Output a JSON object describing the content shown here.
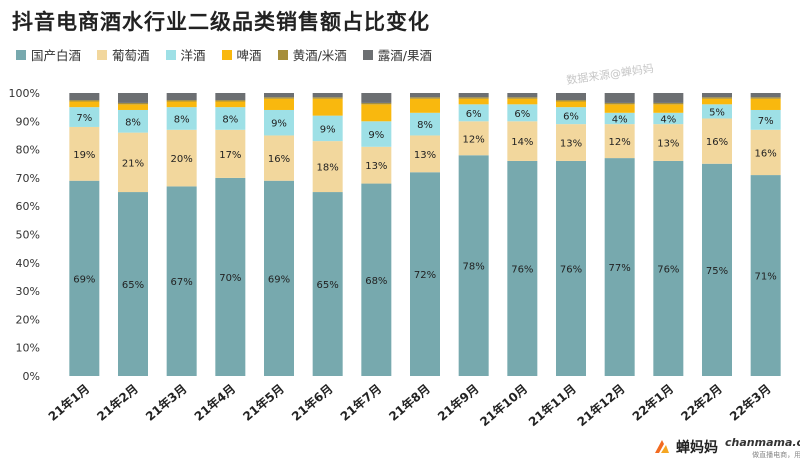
{
  "title": "抖音电商酒水行业二级品类销售额占比变化",
  "watermark": "数据来源@蝉妈妈",
  "brand": {
    "logo_text": "蝉妈妈",
    "site": "chanmama.com",
    "slogan": "做直播电商，用蝉妈妈"
  },
  "chart_data": {
    "type": "bar",
    "stacked": true,
    "title": "抖音电商酒水行业二级品类销售额占比变化",
    "categories": [
      "21年1月",
      "21年2月",
      "21年3月",
      "21年4月",
      "21年5月",
      "21年6月",
      "21年7月",
      "21年8月",
      "21年9月",
      "21年10月",
      "21年11月",
      "21年12月",
      "22年1月",
      "22年2月",
      "22年3月"
    ],
    "yticks": [
      "0%",
      "10%",
      "20%",
      "30%",
      "40%",
      "50%",
      "60%",
      "70%",
      "80%",
      "90%",
      "100%"
    ],
    "ylim": [
      0,
      100
    ],
    "legend_position": "top-left",
    "series": [
      {
        "name": "国产白酒",
        "color": "#77A9AE",
        "values": [
          69,
          65,
          67,
          70,
          69,
          65,
          68,
          72,
          78,
          76,
          76,
          77,
          76,
          75,
          71
        ],
        "labels": [
          "69%",
          "65%",
          "67%",
          "70%",
          "69%",
          "65%",
          "68%",
          "72%",
          "78%",
          "76%",
          "76%",
          "77%",
          "76%",
          "75%",
          "71%"
        ]
      },
      {
        "name": "葡萄酒",
        "color": "#F2D79D",
        "values": [
          19,
          21,
          20,
          17,
          16,
          18,
          13,
          13,
          12,
          14,
          13,
          12,
          13,
          16,
          16
        ],
        "labels": [
          "19%",
          "21%",
          "20%",
          "17%",
          "16%",
          "18%",
          "13%",
          "13%",
          "12%",
          "14%",
          "13%",
          "12%",
          "13%",
          "16%",
          "16%"
        ]
      },
      {
        "name": "洋酒",
        "color": "#9EE0E6",
        "values": [
          7,
          8,
          8,
          8,
          9,
          9,
          9,
          8,
          6,
          6,
          6,
          4,
          4,
          5,
          7
        ],
        "labels": [
          "7%",
          "8%",
          "8%",
          "8%",
          "9%",
          "9%",
          "9%",
          "8%",
          "6%",
          "6%",
          "6%",
          "4%",
          "4%",
          "5%",
          "7%"
        ]
      },
      {
        "name": "啤酒",
        "color": "#F9B80E",
        "values": [
          2,
          2,
          2,
          2,
          4,
          6,
          6,
          5,
          2,
          2,
          2,
          3,
          3,
          2,
          4
        ],
        "labels": [
          "",
          "",
          "",
          "",
          "",
          "",
          "",
          "",
          "",
          "",
          "",
          "",
          "",
          "",
          ""
        ]
      },
      {
        "name": "黄酒/米酒",
        "color": "#A68E3A",
        "values": [
          0.5,
          0.5,
          0.5,
          0.5,
          0.5,
          0.5,
          0.5,
          0.5,
          0.5,
          0.5,
          0.5,
          0.5,
          0.5,
          0.5,
          0.5
        ],
        "labels": [
          "",
          "",
          "",
          "",
          "",
          "",
          "",
          "",
          "",
          "",
          "",
          "",
          "",
          "",
          ""
        ]
      },
      {
        "name": "露酒/果酒",
        "color": "#6C6F72",
        "values": [
          2.5,
          3.5,
          2.5,
          2.5,
          1.5,
          1.5,
          3.5,
          1.5,
          1.5,
          1.5,
          2.5,
          3.5,
          3.5,
          1.5,
          1.5
        ],
        "labels": [
          "",
          "",
          "",
          "",
          "",
          "",
          "",
          "",
          "",
          "",
          "",
          "",
          "",
          "",
          ""
        ]
      }
    ]
  }
}
